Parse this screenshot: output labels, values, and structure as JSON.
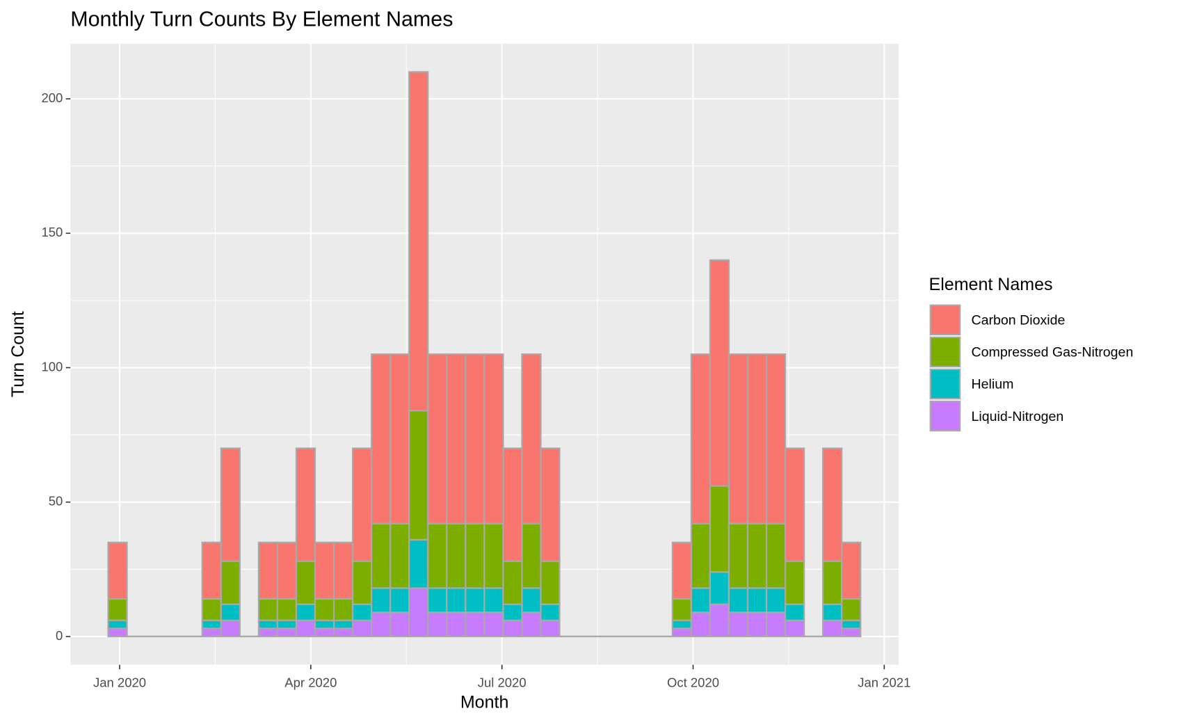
{
  "chart_data": {
    "type": "histogram",
    "stacked": true,
    "title": "Monthly Turn Counts By Element Names",
    "x_label": "Month",
    "y_label": "Turn Count",
    "legend_title": "Element Names",
    "legend": "right",
    "grid": true,
    "bins": [
      2019.985,
      2020.0096,
      2020.0342,
      2020.0588,
      2020.0834,
      2020.108,
      2020.1326,
      2020.1572,
      2020.1818,
      2020.2064,
      2020.231,
      2020.2556,
      2020.2802,
      2020.3048,
      2020.3294,
      2020.354,
      2020.3786,
      2020.4032,
      2020.4278,
      2020.4524,
      2020.477,
      2020.5016,
      2020.5262,
      2020.5508,
      2020.5754,
      2020.6,
      2020.6246,
      2020.6492,
      2020.6738,
      2020.6984,
      2020.723,
      2020.7476,
      2020.7722,
      2020.7968,
      2020.8214,
      2020.846,
      2020.8706,
      2020.8952,
      2020.9198,
      2020.9444,
      2020.969
    ],
    "series": [
      {
        "name": "Carbon Dioxide",
        "color": "#F8766D",
        "values": [
          21,
          0,
          0,
          0,
          0,
          21,
          42,
          0,
          21,
          21,
          42,
          21,
          21,
          42,
          63,
          63,
          126,
          63,
          63,
          63,
          63,
          42,
          63,
          42,
          0,
          0,
          0,
          0,
          0,
          0,
          21,
          63,
          84,
          63,
          63,
          63,
          42,
          0,
          42,
          21
        ]
      },
      {
        "name": "Compressed Gas-Nitrogen",
        "color": "#7CAE00",
        "values": [
          8,
          0,
          0,
          0,
          0,
          8,
          16,
          0,
          8,
          8,
          16,
          8,
          8,
          16,
          24,
          24,
          48,
          24,
          24,
          24,
          24,
          16,
          24,
          16,
          0,
          0,
          0,
          0,
          0,
          0,
          8,
          24,
          32,
          24,
          24,
          24,
          16,
          0,
          16,
          8
        ]
      },
      {
        "name": "Helium",
        "color": "#00BFC4",
        "values": [
          3,
          0,
          0,
          0,
          0,
          3,
          6,
          0,
          3,
          3,
          6,
          3,
          3,
          6,
          9,
          9,
          18,
          9,
          9,
          9,
          9,
          6,
          9,
          6,
          0,
          0,
          0,
          0,
          0,
          0,
          3,
          9,
          12,
          9,
          9,
          9,
          6,
          0,
          6,
          3
        ]
      },
      {
        "name": "Liquid-Nitrogen",
        "color": "#C77CFF",
        "values": [
          3,
          0,
          0,
          0,
          0,
          3,
          6,
          0,
          3,
          3,
          6,
          3,
          3,
          6,
          9,
          9,
          18,
          9,
          9,
          9,
          9,
          6,
          9,
          6,
          0,
          0,
          0,
          0,
          0,
          0,
          3,
          9,
          12,
          9,
          9,
          9,
          6,
          0,
          6,
          3
        ]
      }
    ],
    "xlim": [
      2019.9356,
      2021.0188
    ],
    "xticks": [
      {
        "value": 2020.0,
        "label": "Jan 2020"
      },
      {
        "value": 2020.25,
        "label": "Apr 2020"
      },
      {
        "value": 2020.5,
        "label": "Jul 2020"
      },
      {
        "value": 2020.75,
        "label": "Oct 2020"
      },
      {
        "value": 2021.0,
        "label": "Jan 2021"
      }
    ],
    "ylim": [
      -10.5,
      220.5
    ],
    "yticks": [
      0,
      50,
      100,
      150,
      200
    ]
  }
}
